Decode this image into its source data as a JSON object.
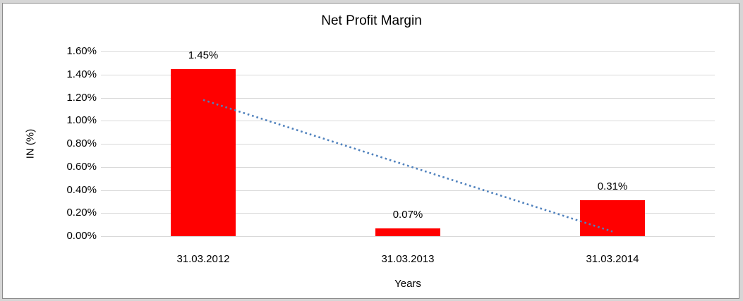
{
  "chart_data": {
    "type": "bar",
    "title": "Net Profit Margin",
    "xlabel": "Years",
    "ylabel": "IN (%)",
    "categories": [
      "31.03.2012",
      "31.03.2013",
      "31.03.2014"
    ],
    "values": [
      1.45,
      0.07,
      0.31
    ],
    "data_labels": [
      "1.45%",
      "0.07%",
      "0.31%"
    ],
    "ylim": [
      0,
      1.6
    ],
    "y_tick_step": 0.2,
    "y_tick_labels": [
      "0.00%",
      "0.20%",
      "0.40%",
      "0.60%",
      "0.80%",
      "1.00%",
      "1.20%",
      "1.40%",
      "1.60%"
    ],
    "grid": true,
    "legend": "none",
    "bar_color": "#FF0000",
    "gridline_color": "#D9D9D9",
    "text_color": "#000000",
    "trendline": {
      "type": "linear",
      "style": "dotted",
      "color": "#4F81BD",
      "start_value": 1.18,
      "end_value": 0.04
    }
  }
}
